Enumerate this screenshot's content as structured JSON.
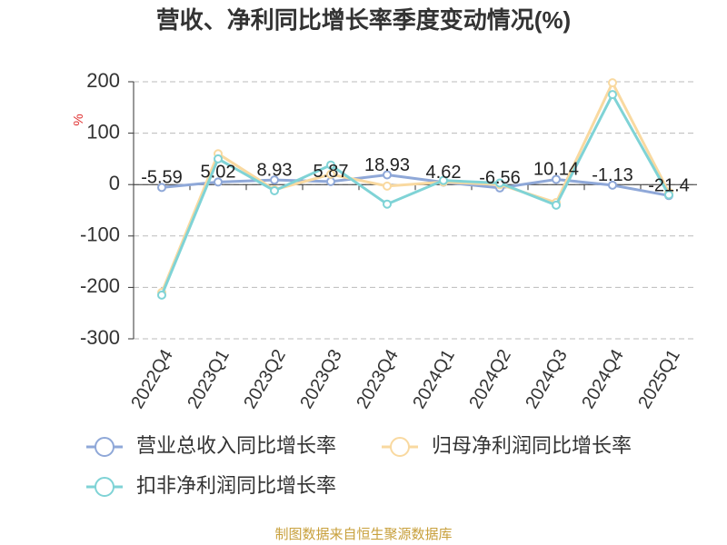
{
  "chart_data": {
    "type": "line",
    "title": "营收、净利同比增长率季度变动情况(%)",
    "y_label": "%",
    "categories": [
      "2022Q4",
      "2023Q1",
      "2023Q2",
      "2023Q3",
      "2023Q4",
      "2024Q1",
      "2024Q2",
      "2024Q3",
      "2024Q4",
      "2025Q1"
    ],
    "series": [
      {
        "name": "营业总收入同比增长率",
        "color": "#8fa8d8",
        "values": [
          -5.59,
          5.02,
          8.93,
          5.87,
          18.93,
          4.62,
          -6.56,
          10.14,
          -1.13,
          -21.4
        ],
        "show_labels": true
      },
      {
        "name": "归母净利润同比增长率",
        "color": "#f9d9a0",
        "values": [
          -210,
          60,
          -10,
          20,
          -3,
          5,
          0,
          -35,
          198,
          -15
        ]
      },
      {
        "name": "扣非净利润同比增长率",
        "color": "#7fd3d6",
        "values": [
          -215,
          50,
          -12,
          38,
          -38,
          8,
          3,
          -40,
          175,
          -20
        ]
      }
    ],
    "ylim": [
      -300,
      200
    ],
    "yticks": [
      -300,
      -200,
      -100,
      0,
      100,
      200
    ],
    "grid": true,
    "source": "制图数据来自恒生聚源数据库"
  }
}
